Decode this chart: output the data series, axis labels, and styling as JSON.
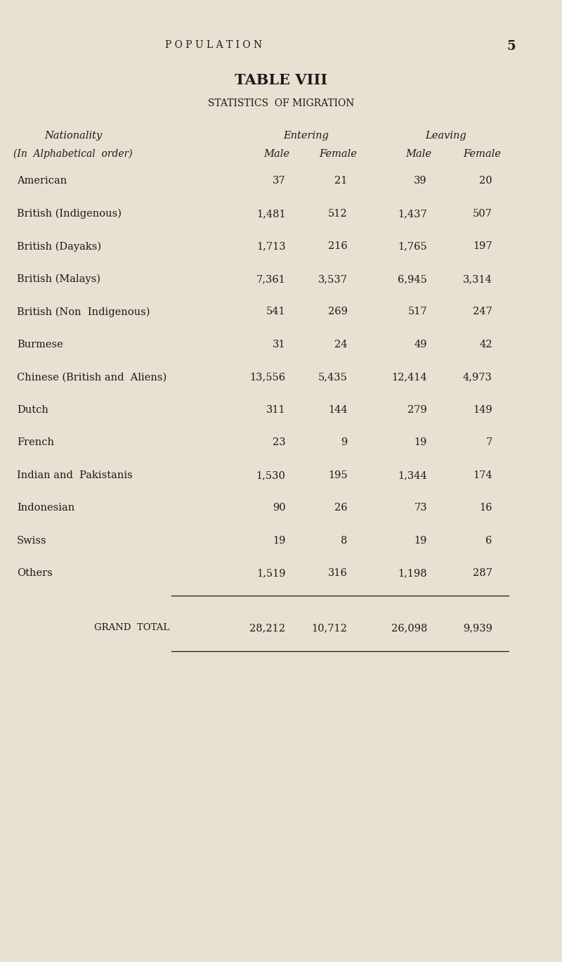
{
  "bg_color": "#e8e0d0",
  "text_color": "#1a1a1a",
  "page_header": "P O P U L A T I O N",
  "page_number": "5",
  "table_title": "TABLE VIII",
  "table_subtitle": "STATISTICS  OF MIGRATION",
  "rows": [
    [
      "American",
      "37",
      "21",
      "39",
      "20"
    ],
    [
      "British (Indigenous)",
      "1,481",
      "512",
      "1,437",
      "507"
    ],
    [
      "British (Dayaks)",
      "1,713",
      "216",
      "1,765",
      "197"
    ],
    [
      "British (Malays)",
      "7,361",
      "3,537",
      "6,945",
      "3,314"
    ],
    [
      "British (Non  Indigenous)",
      "541",
      "269",
      "517",
      "247"
    ],
    [
      "Burmese",
      "31",
      "24",
      "49",
      "42"
    ],
    [
      "Chinese (British and  Aliens)",
      "13,556",
      "5,435",
      "12,414",
      "4,973"
    ],
    [
      "Dutch",
      "311",
      "144",
      "279",
      "149"
    ],
    [
      "French",
      "23",
      "9",
      "19",
      "7"
    ],
    [
      "Indian and  Pakistanis",
      "1,530",
      "195",
      "1,344",
      "174"
    ],
    [
      "Indonesian",
      "90",
      "26",
      "73",
      "16"
    ],
    [
      "Swiss",
      "19",
      "8",
      "19",
      "6"
    ],
    [
      "Others",
      "1,519",
      "316",
      "1,198",
      "287"
    ]
  ],
  "grand_total_label": "GRAND  TOTAL",
  "grand_total_values": [
    "28,212",
    "10,712",
    "26,098",
    "9,939"
  ],
  "figsize": [
    8.0,
    13.68
  ],
  "dpi": 100
}
